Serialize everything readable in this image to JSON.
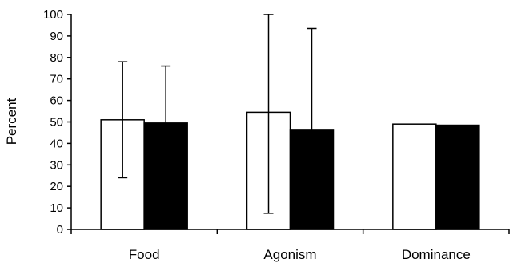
{
  "chart_data": {
    "type": "bar",
    "title": "",
    "xlabel": "",
    "ylabel": "Percent",
    "ylim": [
      0,
      100
    ],
    "yticks": [
      0,
      10,
      20,
      30,
      40,
      50,
      60,
      70,
      80,
      90,
      100
    ],
    "grid": false,
    "legend": "none",
    "categories": [
      "Food",
      "Agonism",
      "Dominance"
    ],
    "series": [
      {
        "fill": "#ffffff",
        "values": [
          51,
          54.5,
          49
        ],
        "error_high": [
          78,
          100,
          null
        ],
        "error_low": [
          24,
          7.5,
          null
        ]
      },
      {
        "fill": "#000000",
        "values": [
          49.5,
          46.5,
          48.5
        ],
        "error_high": [
          76,
          93.5,
          null
        ],
        "error_low": [
          null,
          null,
          null
        ]
      }
    ]
  }
}
